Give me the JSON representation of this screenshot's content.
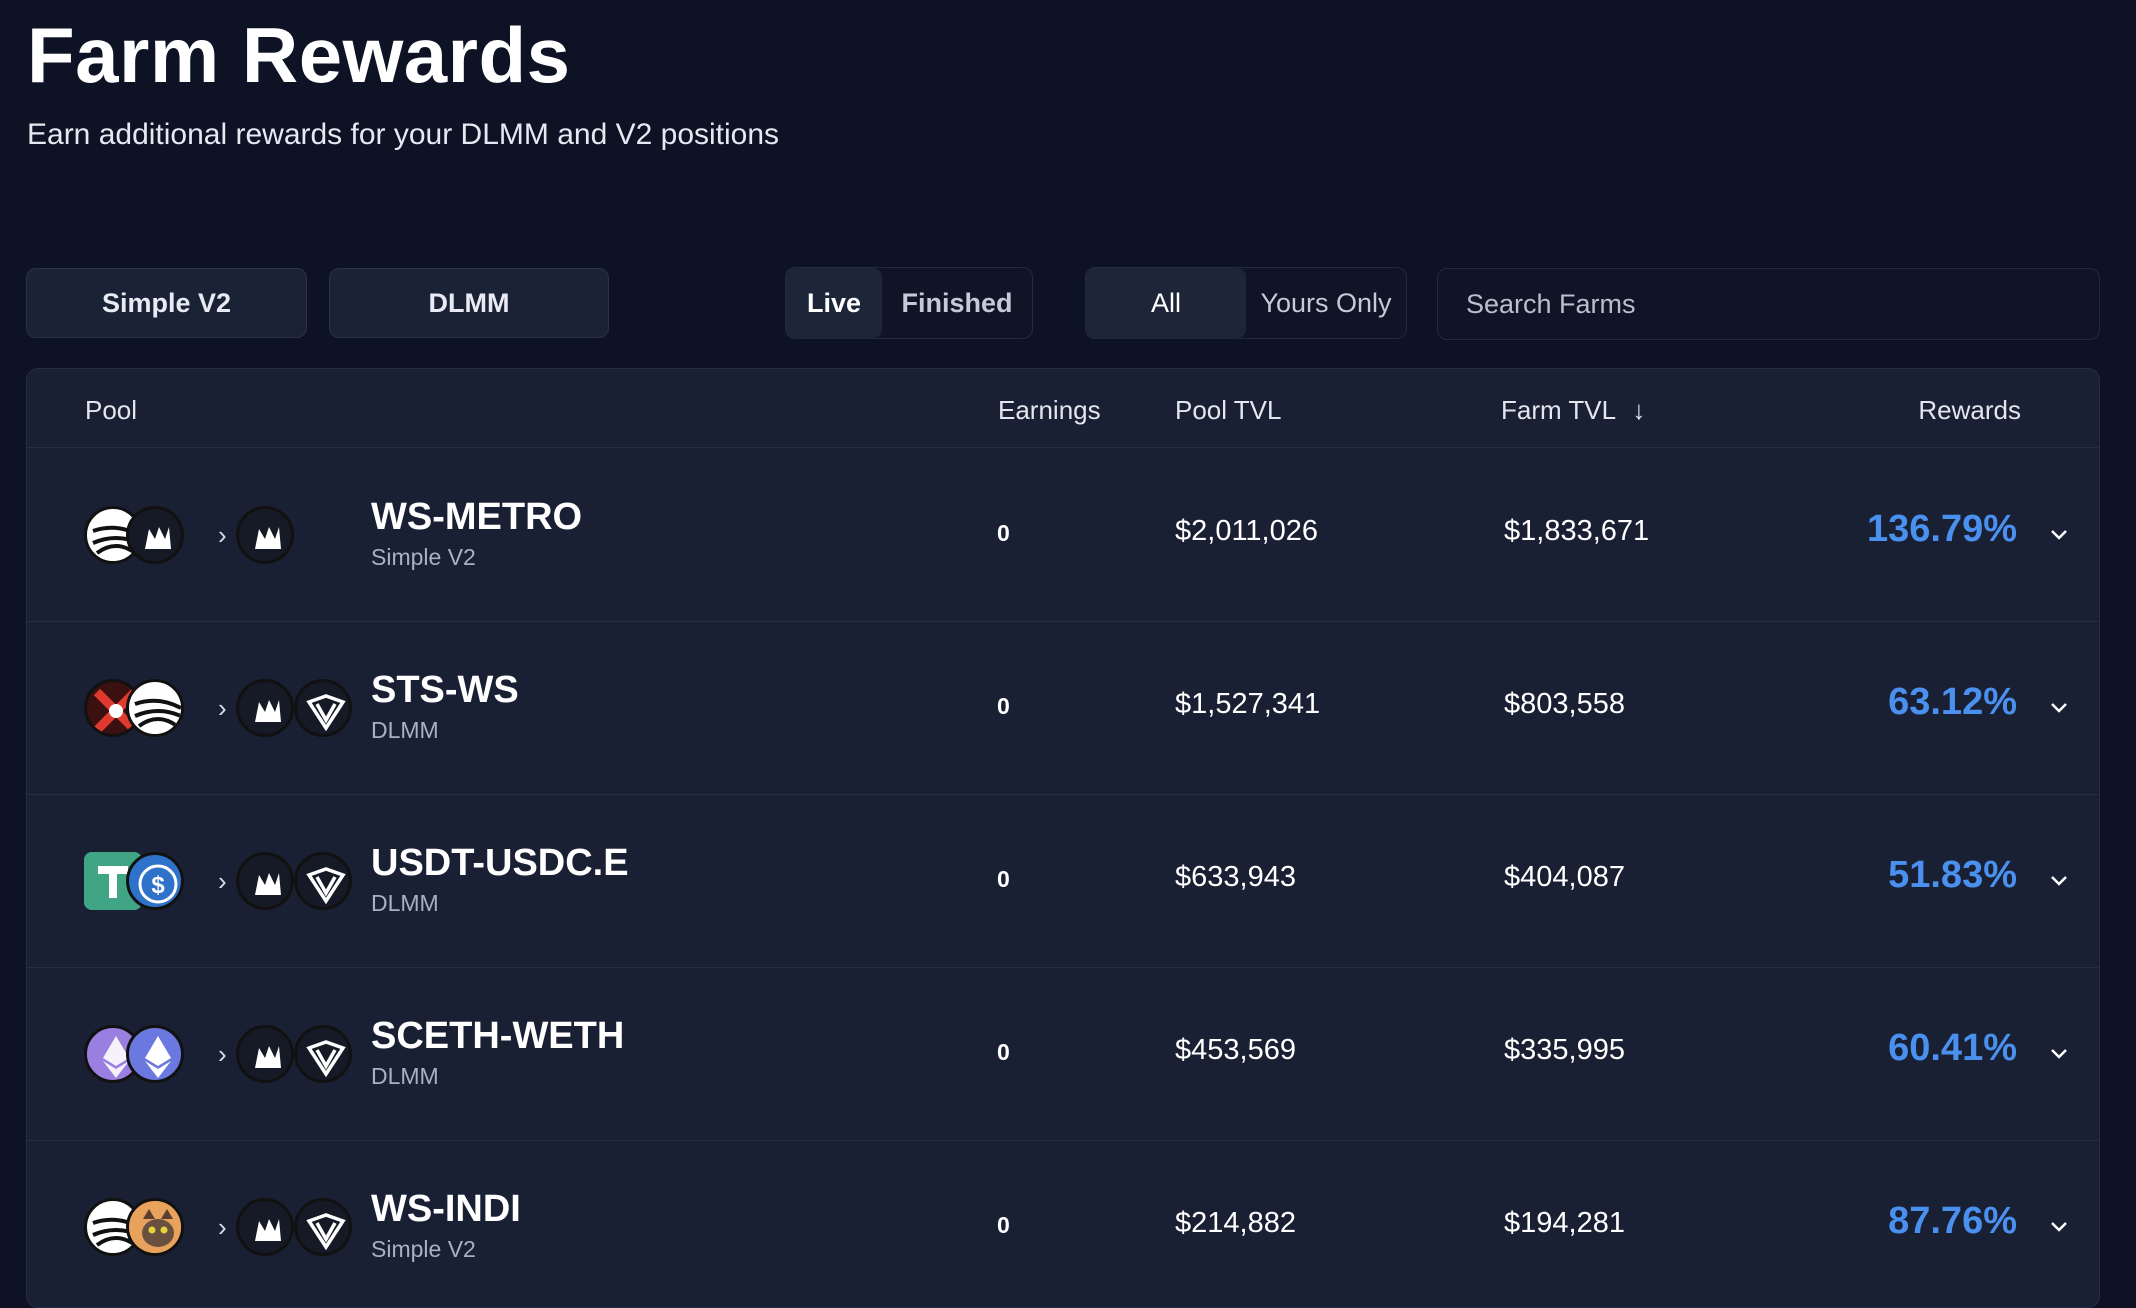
{
  "header": {
    "title": "Farm Rewards",
    "subtitle": "Earn additional rewards for your DLMM and V2 positions"
  },
  "filters": {
    "simple_v2_label": "Simple V2",
    "dlmm_label": "DLMM",
    "status": {
      "live_label": "Live",
      "finished_label": "Finished",
      "selected": "Live"
    },
    "ownership": {
      "all_label": "All",
      "yours_only_label": "Yours Only",
      "selected": "All"
    },
    "search": {
      "placeholder": "Search Farms",
      "value": ""
    }
  },
  "table": {
    "columns": {
      "pool": "Pool",
      "earnings": "Earnings",
      "pool_tvl": "Pool TVL",
      "farm_tvl": "Farm TVL",
      "sort_indicator": "↓",
      "rewards": "Rewards"
    },
    "rows": [
      {
        "name": "WS-METRO",
        "type": "Simple V2",
        "earnings": "0",
        "pool_tvl": "$2,011,026",
        "farm_tvl": "$1,833,671",
        "rewards": "136.79%",
        "pair_icons": [
          "sonic-ws-icon",
          "metro-icon"
        ],
        "reward_icons": [
          "metro-icon"
        ]
      },
      {
        "name": "STS-WS",
        "type": "DLMM",
        "earnings": "0",
        "pool_tvl": "$1,527,341",
        "farm_tvl": "$803,558",
        "rewards": "63.12%",
        "pair_icons": [
          "sts-icon",
          "sonic-ws-icon"
        ],
        "reward_icons": [
          "metro-icon",
          "shield-v-icon"
        ]
      },
      {
        "name": "USDT-USDC.E",
        "type": "DLMM",
        "earnings": "0",
        "pool_tvl": "$633,943",
        "farm_tvl": "$404,087",
        "rewards": "51.83%",
        "pair_icons": [
          "usdt-icon",
          "usdc-icon"
        ],
        "reward_icons": [
          "metro-icon",
          "shield-v-icon"
        ]
      },
      {
        "name": "SCETH-WETH",
        "type": "DLMM",
        "earnings": "0",
        "pool_tvl": "$453,569",
        "farm_tvl": "$335,995",
        "rewards": "60.41%",
        "pair_icons": [
          "sceth-icon",
          "weth-icon"
        ],
        "reward_icons": [
          "metro-icon",
          "shield-v-icon"
        ]
      },
      {
        "name": "WS-INDI",
        "type": "Simple V2",
        "earnings": "0",
        "pool_tvl": "$214,882",
        "farm_tvl": "$194,281",
        "rewards": "87.76%",
        "pair_icons": [
          "sonic-ws-icon",
          "indi-cat-icon"
        ],
        "reward_icons": [
          "metro-icon",
          "shield-v-icon"
        ]
      }
    ]
  },
  "colors": {
    "background": "#0d1224",
    "panel": "#1a2033",
    "accent_apr": "#4a90ef"
  }
}
